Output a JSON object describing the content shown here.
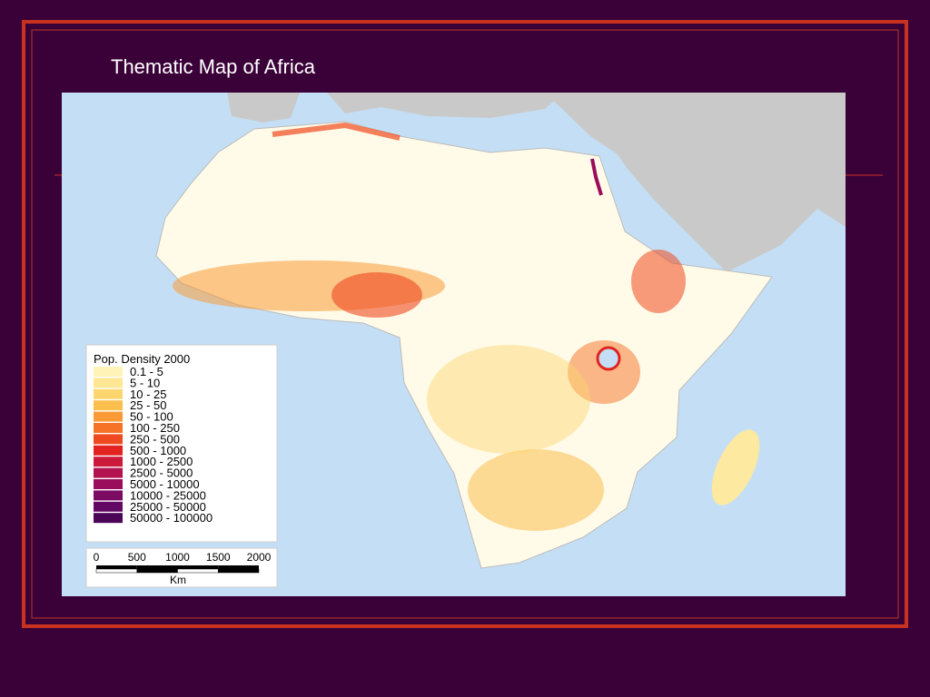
{
  "slide": {
    "title": "Thematic Map of Africa"
  },
  "legend": {
    "title": "Pop. Density 2000",
    "items": [
      {
        "label": "0.1 - 5",
        "color": "#fff3b8"
      },
      {
        "label": "5 - 10",
        "color": "#ffe793"
      },
      {
        "label": "10 - 25",
        "color": "#fdd56e"
      },
      {
        "label": "25 - 50",
        "color": "#fbbf4e"
      },
      {
        "label": "50 - 100",
        "color": "#f99a36"
      },
      {
        "label": "100 - 250",
        "color": "#f57226"
      },
      {
        "label": "250 - 500",
        "color": "#ef4a1f"
      },
      {
        "label": "500 - 1000",
        "color": "#e2231f"
      },
      {
        "label": "1000 - 2500",
        "color": "#cc1a3a"
      },
      {
        "label": "2500 - 5000",
        "color": "#b3134f"
      },
      {
        "label": "5000 - 10000",
        "color": "#9a0d5d"
      },
      {
        "label": "10000 - 25000",
        "color": "#7c0b64"
      },
      {
        "label": "25000 - 50000",
        "color": "#640865"
      },
      {
        "label": "50000 - 100000",
        "color": "#4a0556"
      }
    ]
  },
  "scale_bar": {
    "ticks": [
      "0",
      "500",
      "1000",
      "1500",
      "2000"
    ],
    "unit": "Km"
  }
}
